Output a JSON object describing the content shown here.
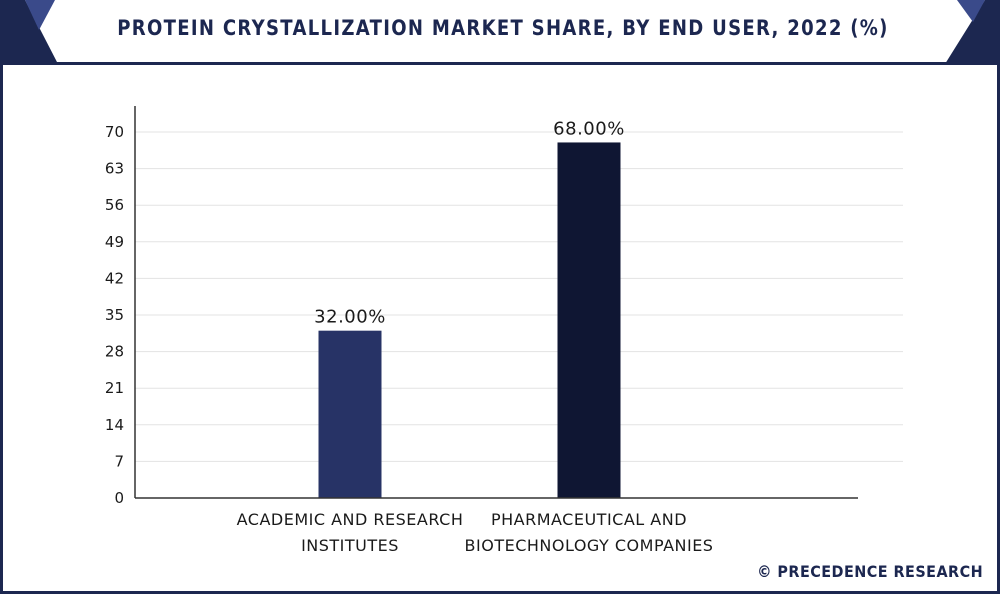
{
  "chart_data": {
    "type": "bar",
    "title": "PROTEIN CRYSTALLIZATION MARKET SHARE, BY END USER, 2022 (%)",
    "categories": [
      [
        "ACADEMIC AND RESEARCH",
        "INSTITUTES"
      ],
      [
        "PHARMACEUTICAL AND",
        "BIOTECHNOLOGY COMPANIES"
      ]
    ],
    "values": [
      32.0,
      68.0
    ],
    "value_labels": [
      "32.00%",
      "68.00%"
    ],
    "bar_colors": [
      "#273366",
      "#0f1633"
    ],
    "ylim": [
      0,
      70
    ],
    "yticks": [
      0,
      7,
      14,
      21,
      28,
      35,
      42,
      49,
      56,
      63,
      70
    ],
    "xlabel": "",
    "ylabel": "",
    "grid": true,
    "legend": "none"
  },
  "source": "© PRECEDENCE RESEARCH",
  "colors": {
    "brand": "#1c2750",
    "corner_accent": "#3a4a8a"
  }
}
